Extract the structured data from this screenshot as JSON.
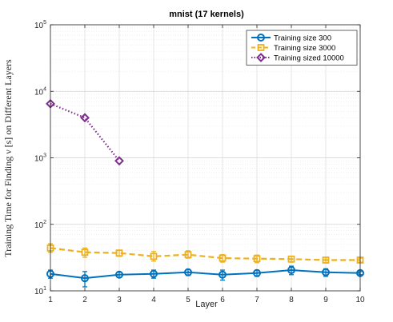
{
  "chart_data": {
    "type": "line",
    "title": "mnist (17 kernels)",
    "xlabel": "Layer",
    "ylabel": "Training Time for Finding ν [s] on Different Layers",
    "x": [
      1,
      2,
      3,
      4,
      5,
      6,
      7,
      8,
      9,
      10
    ],
    "xlim": [
      1,
      10
    ],
    "ylim": [
      10,
      100000
    ],
    "yscale": "log",
    "grid": true,
    "minor_grid": true,
    "legend_position": "top-right",
    "xticks": [
      "1",
      "2",
      "3",
      "4",
      "5",
      "6",
      "7",
      "8",
      "9",
      "10"
    ],
    "yticks": [
      {
        "base": "10",
        "exp": "1"
      },
      {
        "base": "10",
        "exp": "2"
      },
      {
        "base": "10",
        "exp": "3"
      },
      {
        "base": "10",
        "exp": "4"
      },
      {
        "base": "10",
        "exp": "5"
      }
    ],
    "series": [
      {
        "name": "Training size 300",
        "color": "#0072BD",
        "marker": "circle",
        "line_style": "solid",
        "x": [
          1,
          2,
          3,
          4,
          5,
          6,
          7,
          8,
          9,
          10
        ],
        "values": [
          18,
          15.5,
          17.5,
          18,
          19,
          17.5,
          18.5,
          20.5,
          19,
          18.5
        ],
        "err_low": [
          2.5,
          4,
          1.5,
          2.5,
          2,
          3,
          2,
          3,
          2.5,
          1
        ],
        "err_high": [
          2.5,
          4,
          1.5,
          2.5,
          2,
          3,
          2,
          3,
          2.5,
          1
        ]
      },
      {
        "name": "Training size 3000",
        "color": "#EDB120",
        "marker": "square",
        "line_style": "dashed",
        "x": [
          1,
          2,
          3,
          4,
          5,
          6,
          7,
          8,
          9,
          10
        ],
        "values": [
          44,
          38,
          37,
          33,
          35,
          31,
          30.5,
          30,
          29,
          29
        ],
        "err_low": [
          6,
          6,
          4,
          5,
          4,
          4,
          4,
          3,
          2.5,
          2
        ],
        "err_high": [
          7,
          6,
          4,
          6,
          5,
          4,
          4,
          3,
          2.5,
          2
        ]
      },
      {
        "name": "Training sized 10000",
        "color": "#7E2F8E",
        "marker": "diamond",
        "line_style": "dotted",
        "x": [
          1,
          2,
          3
        ],
        "values": [
          6500,
          4000,
          900
        ],
        "err_low": [
          0,
          0,
          0
        ],
        "err_high": [
          0,
          0,
          0
        ]
      }
    ]
  }
}
